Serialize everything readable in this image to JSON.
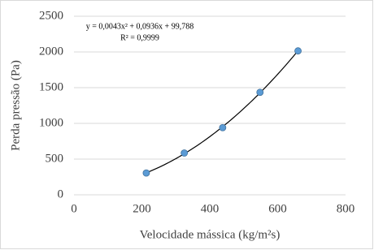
{
  "chart_data": {
    "type": "scatter",
    "xlabel": "Velocidade mássica (kg/m²s)",
    "ylabel": "Perda pressão (Pa)",
    "x": [
      213,
      325,
      438,
      548,
      660
    ],
    "values": [
      305,
      585,
      940,
      1435,
      2015
    ],
    "color": "#5b9bd5",
    "xlim": [
      0,
      800
    ],
    "xticks": [
      0,
      200,
      400,
      600,
      800
    ],
    "ylim": [
      0,
      2500
    ],
    "yticks": [
      0,
      500,
      1000,
      1500,
      2000,
      2500
    ],
    "grid": true,
    "trendline": {
      "type": "polynomial",
      "order": 2,
      "color": "#000000"
    },
    "annotations": [
      "y = 0,0043x² + 0,0936x + 99,788",
      "R² = 0,9999"
    ]
  }
}
